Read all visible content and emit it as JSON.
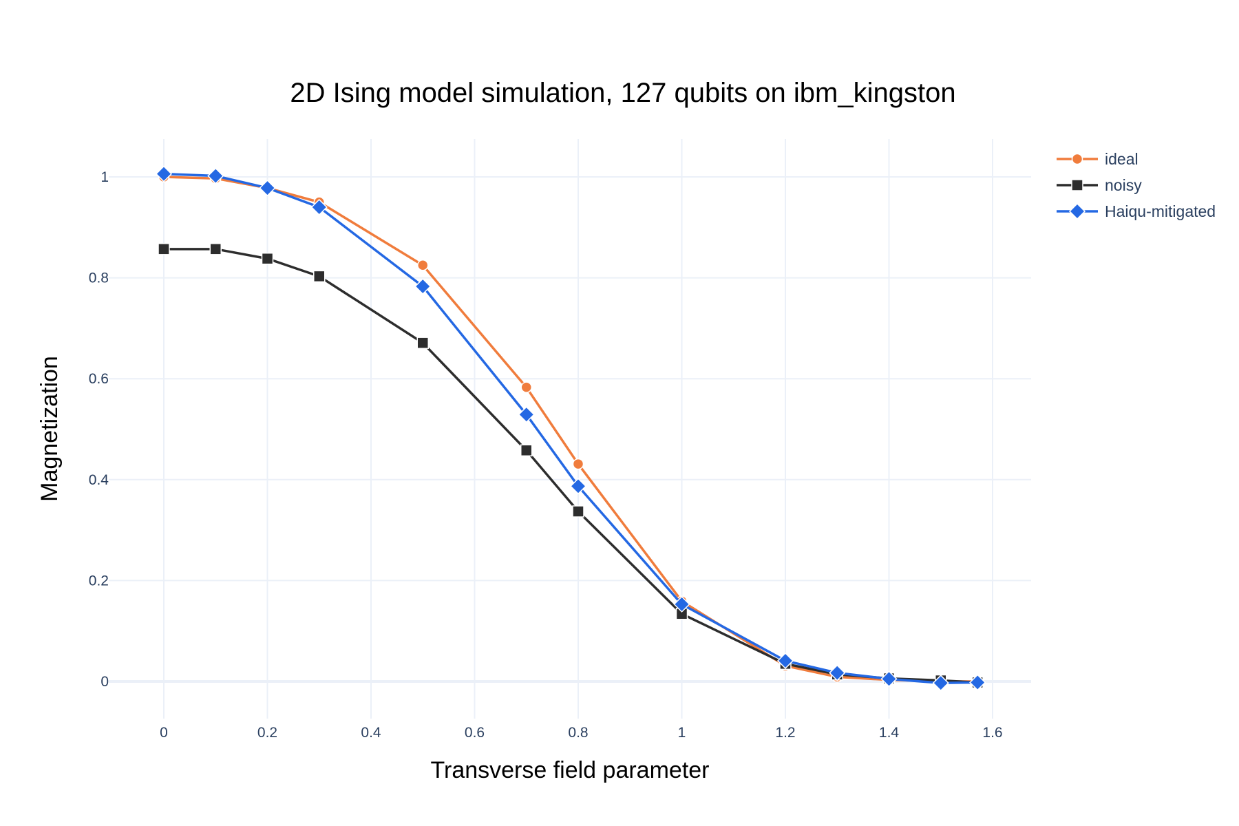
{
  "chart_data": {
    "type": "line",
    "title": "2D Ising model simulation, 127 qubits on ibm_kingston",
    "xlabel": "Transverse field parameter",
    "ylabel": "Magnetization",
    "xlim": [
      -0.1,
      1.67
    ],
    "ylim": [
      -0.08,
      1.08
    ],
    "xticks": [
      "0",
      "0.2",
      "0.4",
      "0.6",
      "0.8",
      "1",
      "1.2",
      "1.4",
      "1.6"
    ],
    "yticks": [
      "0",
      "0.2",
      "0.4",
      "0.6",
      "0.8",
      "1"
    ],
    "grid": true,
    "legend_position": "top-right",
    "x": [
      0,
      0.1,
      0.2,
      0.3,
      0.5,
      0.7,
      0.8,
      1.0,
      1.2,
      1.3,
      1.4,
      1.5,
      1.571
    ],
    "series": [
      {
        "name": "ideal",
        "color": "#f07c3c",
        "marker": "circle",
        "values": [
          1.0,
          0.997,
          0.978,
          0.95,
          0.825,
          0.583,
          0.431,
          0.159,
          0.031,
          0.009,
          0.003,
          0.0,
          0.0
        ]
      },
      {
        "name": "noisy",
        "color": "#2d2d2d",
        "marker": "square",
        "values": [
          0.857,
          0.857,
          0.838,
          0.803,
          0.671,
          0.458,
          0.337,
          0.134,
          0.035,
          0.014,
          0.006,
          0.002,
          -0.002
        ]
      },
      {
        "name": "Haiqu-mitigated",
        "color": "#2468e3",
        "marker": "diamond",
        "values": [
          1.006,
          1.002,
          0.978,
          0.94,
          0.783,
          0.529,
          0.387,
          0.153,
          0.041,
          0.017,
          0.005,
          -0.003,
          -0.002
        ]
      }
    ]
  }
}
